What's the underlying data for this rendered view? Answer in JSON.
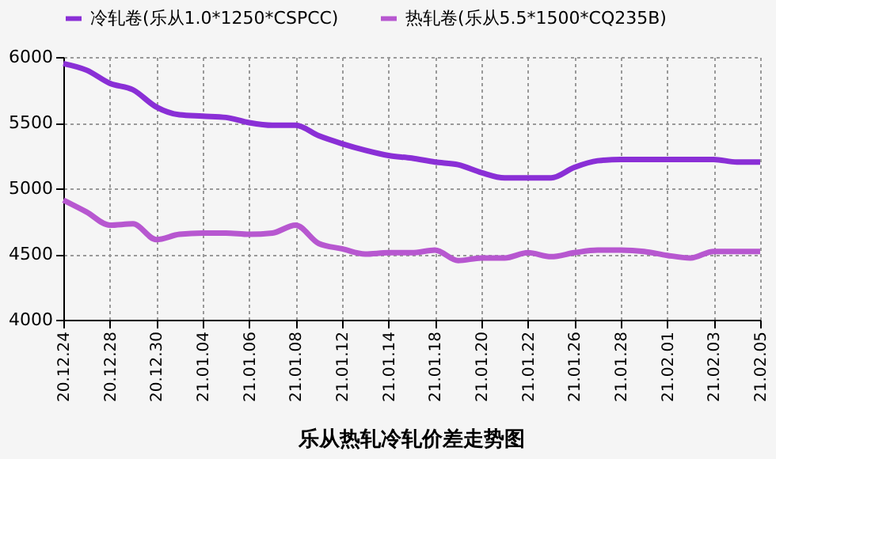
{
  "chart_data": {
    "type": "line",
    "title": "乐从热轧冷轧价差走势图",
    "categories": [
      "20.12.24",
      null,
      "20.12.28",
      null,
      "20.12.30",
      null,
      "21.01.04",
      null,
      "21.01.06",
      null,
      "21.01.08",
      null,
      "21.01.12",
      null,
      "21.01.14",
      null,
      "21.01.18",
      null,
      "21.01.20",
      null,
      "21.01.22",
      null,
      "21.01.26",
      null,
      "21.01.28",
      null,
      "21.02.01",
      null,
      "21.02.03",
      null,
      "21.02.05"
    ],
    "series": [
      {
        "name": "冷轧卷(乐从1.0*1250*CSPCC)",
        "color": "#8a2fd6",
        "values": [
          5950,
          5900,
          5800,
          5750,
          5620,
          5560,
          5550,
          5540,
          5500,
          5480,
          5480,
          5400,
          5340,
          5290,
          5250,
          5230,
          5200,
          5180,
          5120,
          5080,
          5080,
          5080,
          5160,
          5210,
          5220,
          5220,
          5220,
          5220,
          5220,
          5200,
          5200
        ]
      },
      {
        "name": "热轧卷(乐从5.5*1500*CQ235B)",
        "color": "#b757d0",
        "values": [
          4910,
          4820,
          4720,
          4730,
          4610,
          4650,
          4660,
          4660,
          4650,
          4660,
          4720,
          4580,
          4540,
          4500,
          4510,
          4510,
          4530,
          4450,
          4470,
          4470,
          4510,
          4480,
          4510,
          4530,
          4530,
          4520,
          4490,
          4470,
          4520,
          4520,
          4520
        ]
      }
    ],
    "ylim": [
      4000,
      6000
    ],
    "yticks": [
      4000,
      4500,
      5000,
      5500,
      6000
    ],
    "grid": true,
    "legend": "top",
    "marker": "none",
    "line_style": "solid"
  }
}
